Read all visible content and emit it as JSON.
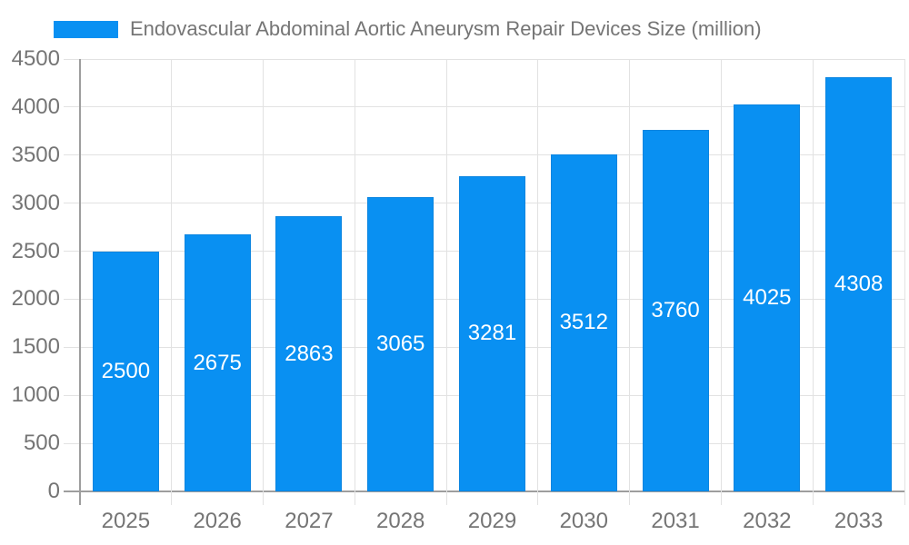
{
  "legend": {
    "label": "Endovascular Abdominal Aortic Aneurysm Repair Devices Size (million)"
  },
  "chart_data": {
    "type": "bar",
    "title": "Endovascular Abdominal Aortic Aneurysm Repair Devices Size (million)",
    "categories": [
      "2025",
      "2026",
      "2027",
      "2028",
      "2029",
      "2030",
      "2031",
      "2032",
      "2033"
    ],
    "values": [
      2500,
      2675,
      2863,
      3065,
      3281,
      3512,
      3760,
      4025,
      4308
    ],
    "value_labels": [
      "2500",
      "2675",
      "2863",
      "3065",
      "3281",
      "3512",
      "3760",
      "4025",
      "4308"
    ],
    "xlabel": "",
    "ylabel": "",
    "ylim": [
      0,
      4500
    ],
    "ytick_step": 500,
    "yticks": [
      0,
      500,
      1000,
      1500,
      2000,
      2500,
      3000,
      3500,
      4000,
      4500
    ],
    "grid": true,
    "legend_position": "top-left",
    "colors": {
      "bar_fill": "#0990f2",
      "bar_border": "#0b85e0",
      "bar_label_text": "#ffffff",
      "gridline": "#e2e2e2",
      "axis_line": "#9e9e9e",
      "tick_text": "#757575",
      "title_text": "#757575",
      "background": "#ffffff"
    }
  }
}
